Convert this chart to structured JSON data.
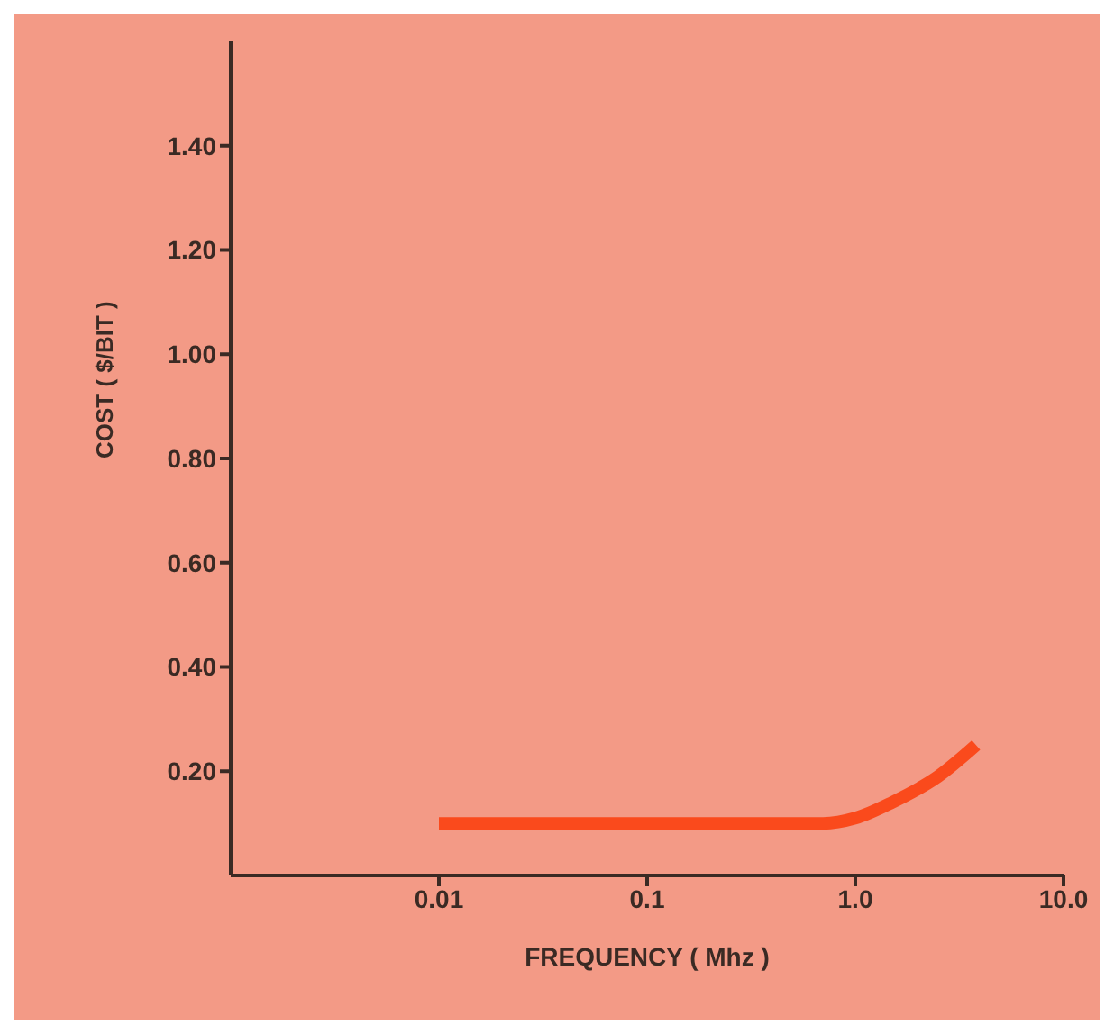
{
  "chart_data": {
    "type": "line",
    "xlabel": "FREQUENCY ( Mhz )",
    "ylabel": "COST ( $/BIT )",
    "log": "x",
    "grid": false,
    "legend": false,
    "marker": "none",
    "line_style": "solid",
    "xlim": [
      0.001,
      10
    ],
    "xticks": [
      {
        "value": 0.01,
        "label": "0.01"
      },
      {
        "value": 0.1,
        "label": "0.1"
      },
      {
        "value": 1,
        "label": "1.0"
      },
      {
        "value": 10,
        "label": "10.0"
      }
    ],
    "ylim": [
      0,
      1.6
    ],
    "yticks": [
      {
        "value": 0.2,
        "label": "0.20"
      },
      {
        "value": 0.4,
        "label": "0.40"
      },
      {
        "value": 0.6,
        "label": "0.60"
      },
      {
        "value": 0.8,
        "label": "0.80"
      },
      {
        "value": 1.0,
        "label": "1.00"
      },
      {
        "value": 1.2,
        "label": "1.20"
      },
      {
        "value": 1.4,
        "label": "1.40"
      }
    ],
    "series": [
      {
        "color": "#fa4a1c",
        "x": [
          0.01,
          0.05,
          0.2,
          0.7,
          1.0,
          1.5,
          2.5,
          3.8
        ],
        "values": [
          0.1,
          0.1,
          0.1,
          0.1,
          0.11,
          0.14,
          0.19,
          0.25
        ]
      }
    ]
  }
}
